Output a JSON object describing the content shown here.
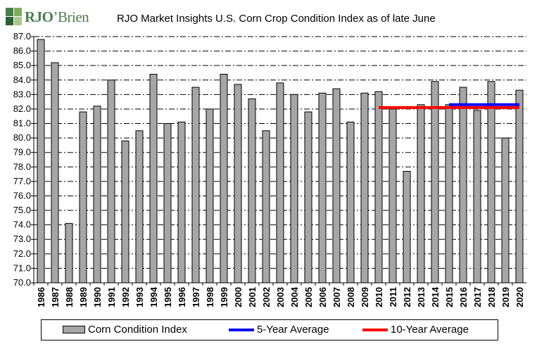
{
  "logo": {
    "text_a": "RJO",
    "text_b": "’Brien",
    "colors": [
      "#4a7d4f",
      "#7fae5a",
      "#2f5e3a",
      "#a9c98a"
    ]
  },
  "title": "RJO Market Insights U.S. Corn Crop Condition Index as of late June",
  "chart_data": {
    "type": "bar",
    "title": "RJO Market Insights U.S. Corn Crop Condition Index as of late June",
    "categories": [
      "1986",
      "1987",
      "1988",
      "1989",
      "1990",
      "1991",
      "1992",
      "1993",
      "1994",
      "1995",
      "1996",
      "1997",
      "1998",
      "1999",
      "2000",
      "2001",
      "2002",
      "2003",
      "2004",
      "2005",
      "2006",
      "2007",
      "2008",
      "2009",
      "2010",
      "2011",
      "2012",
      "2013",
      "2014",
      "2015",
      "2016",
      "2017",
      "2018",
      "2019",
      "2020"
    ],
    "ylim": [
      70.0,
      87.0
    ],
    "yticks": [
      "70.0",
      "71.0",
      "72.0",
      "73.0",
      "74.0",
      "75.0",
      "76.0",
      "77.0",
      "78.0",
      "79.0",
      "80.0",
      "81.0",
      "82.0",
      "83.0",
      "84.0",
      "85.0",
      "86.0",
      "87.0"
    ],
    "grid": "horizontal dash-dot",
    "legend_position": "bottom",
    "series": [
      {
        "name": "Corn Condition Index",
        "kind": "bar",
        "color": "#a6a6a6",
        "values": [
          86.8,
          85.2,
          74.1,
          81.8,
          82.2,
          84.0,
          79.8,
          80.5,
          84.4,
          81.0,
          81.1,
          83.5,
          82.0,
          84.4,
          83.7,
          82.7,
          80.5,
          83.8,
          83.0,
          81.8,
          83.1,
          83.4,
          81.1,
          83.1,
          83.2,
          82.0,
          77.7,
          82.3,
          83.9,
          82.3,
          83.5,
          81.9,
          83.9,
          80.0,
          83.3
        ]
      },
      {
        "name": "5-Year Average",
        "kind": "line",
        "color": "#0000ff",
        "x_start": "2015",
        "x_end": "2020",
        "value": 82.3
      },
      {
        "name": "10-Year Average",
        "kind": "line",
        "color": "#ff0000",
        "x_start": "2010",
        "x_end": "2020",
        "value": 82.1
      }
    ]
  }
}
